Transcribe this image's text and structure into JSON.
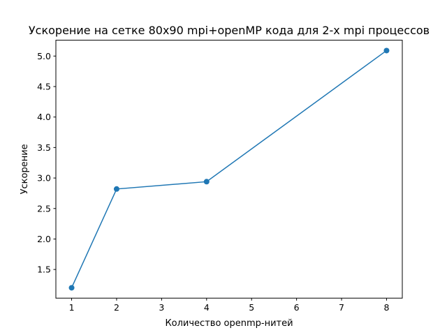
{
  "chart_data": {
    "type": "line",
    "title": "Ускорение на сетке 80x90 mpi+openMP кода для 2-х mpi процессов",
    "xlabel": "Количество openmp-нитей",
    "ylabel": "Ускорение",
    "x": [
      1,
      2,
      4,
      8
    ],
    "series": [
      {
        "values": [
          1.2,
          2.82,
          2.94,
          5.09
        ]
      }
    ],
    "xlim": [
      0.65,
      8.35
    ],
    "ylim": [
      1.03,
      5.26
    ],
    "xticks": [
      1,
      2,
      3,
      4,
      5,
      6,
      7,
      8
    ],
    "xtick_labels": [
      "1",
      "2",
      "3",
      "4",
      "5",
      "6",
      "7",
      "8"
    ],
    "yticks": [
      1.5,
      2.0,
      2.5,
      3.0,
      3.5,
      4.0,
      4.5,
      5.0
    ],
    "ytick_labels": [
      "1.5",
      "2.0",
      "2.5",
      "3.0",
      "3.5",
      "4.0",
      "4.5",
      "5.0"
    ],
    "grid": false,
    "markers": "circle",
    "line_color": "#1f77b4"
  }
}
